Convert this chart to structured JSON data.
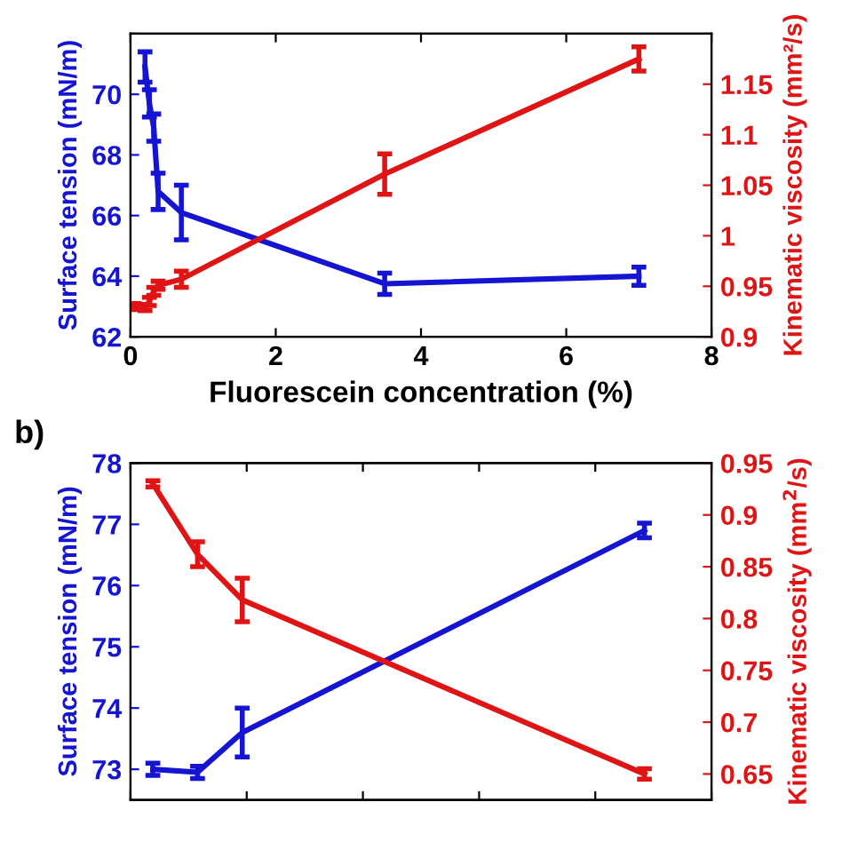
{
  "chart_data": [
    {
      "type": "line",
      "xlabel": "Fluorescein concentration (%)",
      "ylabel": "Surface tension (mN/m)",
      "y2label": "Kinematic viscosity (mm²/s)",
      "xlim": [
        0,
        8
      ],
      "xticks": [
        0,
        2,
        4,
        6,
        8
      ],
      "ylim": [
        62,
        72
      ],
      "yticks": [
        62,
        64,
        66,
        68,
        70,
        {
          "value": 72,
          "label": null
        }
      ],
      "y2lim": [
        0.9,
        1.2
      ],
      "y2ticks": [
        0.9,
        0.95,
        1,
        1.05,
        1.1,
        1.15,
        {
          "value": 1.2,
          "label": null
        }
      ],
      "grid": false,
      "legend": false,
      "marker": "none",
      "line_style": "solid",
      "series": [
        {
          "color": "#1414d2",
          "axis": "y",
          "x": [
            0.2,
            0.26,
            0.32,
            0.38,
            0.7,
            3.5,
            7
          ],
          "values": [
            70.9,
            69.7,
            68.9,
            66.8,
            66.1,
            63.75,
            64.0
          ],
          "errors": [
            0.5,
            0.45,
            0.45,
            0.6,
            0.9,
            0.35,
            0.3
          ]
        },
        {
          "color": "#e01414",
          "axis": "y2",
          "x": [
            0.05,
            0.2,
            0.26,
            0.32,
            0.38,
            0.7,
            3.5,
            7
          ],
          "values": [
            0.93,
            0.929,
            0.935,
            0.945,
            0.951,
            0.957,
            1.061,
            1.175
          ],
          "errors": [
            0.003,
            0.003,
            0.004,
            0.004,
            0.004,
            0.008,
            0.02,
            0.012
          ]
        }
      ]
    },
    {
      "type": "line",
      "ylabel": "Surface tension (mN/m)",
      "y2label": "Kinematic viscosity (mm$^{2}$/s)",
      "categories": [
        null,
        null,
        null,
        null,
        null,
        null,
        null,
        null,
        null,
        null,
        null,
        null,
        null
      ],
      "ylim": [
        72.5,
        78
      ],
      "yticks": [
        73,
        74,
        75,
        76,
        77,
        78
      ],
      "y2lim": [
        0.625,
        0.95
      ],
      "y2ticks": [
        0.65,
        0.7,
        0.75,
        0.8,
        0.85,
        0.9,
        0.95
      ],
      "tick_labels": "y",
      "grid": false,
      "legend": false,
      "marker": "none",
      "line_style": "solid",
      "annotations": [
        "b)"
      ],
      "series": [
        {
          "color": "#1414d2",
          "axis": "y",
          "values": [
            73.0,
            72.95,
            73.6,
            null,
            null,
            null,
            null,
            null,
            null,
            null,
            null,
            76.9,
            null
          ],
          "errors": [
            0.1,
            0.1,
            0.4,
            null,
            null,
            null,
            null,
            null,
            null,
            null,
            null,
            0.12,
            null
          ]
        },
        {
          "color": "#e01414",
          "axis": "y2",
          "values": [
            0.93,
            0.862,
            0.818,
            null,
            null,
            null,
            null,
            null,
            null,
            null,
            null,
            0.65,
            null
          ],
          "errors": [
            0.003,
            0.012,
            0.021,
            null,
            null,
            null,
            null,
            null,
            null,
            null,
            null,
            0.005,
            null
          ]
        }
      ]
    }
  ]
}
